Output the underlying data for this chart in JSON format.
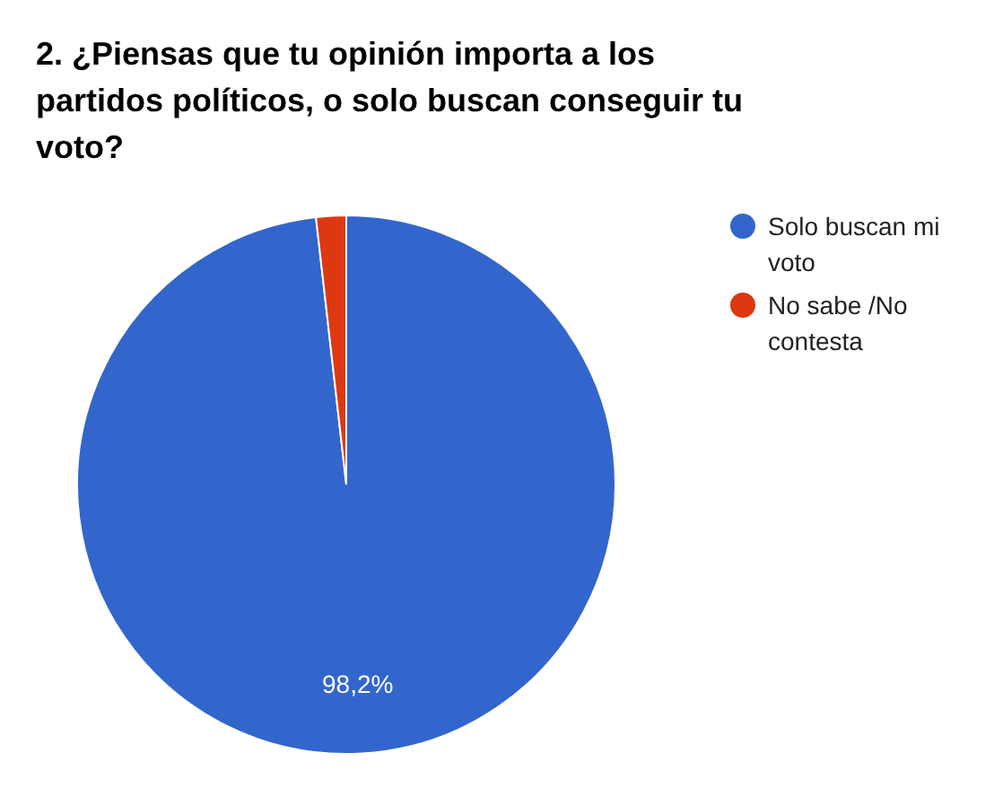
{
  "chart_data": {
    "type": "pie",
    "title": "2. ¿Piensas que tu opinión importa a los partidos políticos, o solo buscan conseguir tu voto?",
    "categories": [
      "Solo buscan mi voto",
      "No sabe /No contesta"
    ],
    "values": [
      98.2,
      1.8
    ],
    "colors": [
      "#3366cc",
      "#dc3912"
    ],
    "value_labels": [
      "98,2%",
      null
    ],
    "legend": "right"
  }
}
